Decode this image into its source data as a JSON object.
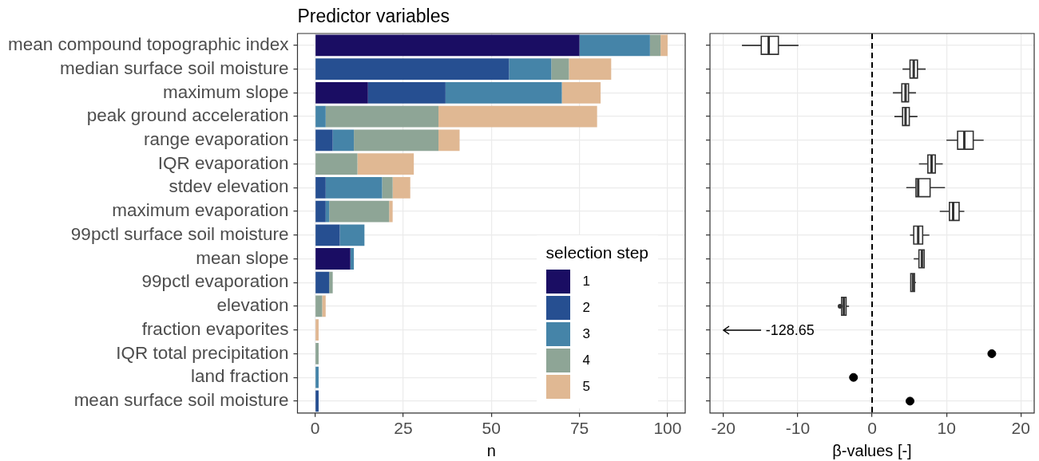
{
  "chart_data": [
    {
      "type": "bar",
      "orientation": "horizontal",
      "stacked": true,
      "title": "Predictor variables",
      "xlabel": "n",
      "legend_title": "selection step",
      "legend": "bottom right",
      "grid": true,
      "categories": [
        "mean compound topographic index",
        "median surface soil moisture",
        "maximum slope",
        "peak ground acceleration",
        "range evaporation",
        "IQR evaporation",
        "stdev elevation",
        "maximum evaporation",
        "99pctl surface soil moisture",
        "mean slope",
        "99pctl evaporation",
        "elevation",
        "fraction evaporites",
        "IQR total precipitation",
        "land fraction",
        "mean surface soil moisture"
      ],
      "xlim": [
        -5,
        105
      ],
      "xticks": [
        0,
        25,
        50,
        75,
        100
      ],
      "series": [
        {
          "name": "1",
          "color": "#1a0d63",
          "values": [
            75,
            0,
            15,
            0,
            0,
            0,
            0,
            0,
            0,
            10,
            0,
            0,
            0,
            0,
            0,
            0
          ]
        },
        {
          "name": "2",
          "color": "#264f91",
          "values": [
            0,
            55,
            22,
            0,
            5,
            0,
            3,
            3,
            7,
            0,
            4,
            0,
            0,
            0,
            0,
            1
          ]
        },
        {
          "name": "3",
          "color": "#4584a8",
          "values": [
            20,
            12,
            33,
            3,
            6,
            0,
            16,
            1,
            7,
            1,
            0,
            0,
            0,
            0,
            1,
            0
          ]
        },
        {
          "name": "4",
          "color": "#8ea596",
          "values": [
            3,
            5,
            0,
            32,
            24,
            12,
            3,
            17,
            0,
            0,
            1,
            2,
            0,
            1,
            0,
            0
          ]
        },
        {
          "name": "5",
          "color": "#e0b893",
          "values": [
            2,
            12,
            11,
            45,
            6,
            16,
            5,
            1,
            0,
            0,
            0,
            1,
            1,
            0,
            0,
            0
          ]
        }
      ]
    },
    {
      "type": "box",
      "orientation": "horizontal",
      "xlabel": "β-values [-]",
      "grid": true,
      "tick_labels": "x",
      "categories": [
        "mean compound topographic index",
        "median surface soil moisture",
        "maximum slope",
        "peak ground acceleration",
        "range evaporation",
        "IQR evaporation",
        "stdev elevation",
        "maximum evaporation",
        "99pctl surface soil moisture",
        "mean slope",
        "99pctl evaporation",
        "elevation",
        "fraction evaporites",
        "IQR total precipitation",
        "land fraction",
        "mean surface soil moisture"
      ],
      "xlim": [
        -21.8,
        21.8
      ],
      "xticks": [
        -20,
        -10,
        0,
        10,
        20
      ],
      "ref_lines": [
        {
          "axis": "x",
          "value": 0,
          "line_style": "dashed",
          "color": "#000000"
        }
      ],
      "annotations": [
        "-128.65"
      ],
      "boxes": [
        {
          "low": -17.5,
          "q1": -14.9,
          "median": -13.9,
          "q3": -12.6,
          "high": -9.9
        },
        {
          "low": 4.1,
          "q1": 5.1,
          "median": 5.6,
          "q3": 6.1,
          "high": 7.2
        },
        {
          "low": 2.8,
          "q1": 4.0,
          "median": 4.5,
          "q3": 4.9,
          "high": 5.9
        },
        {
          "low": 3.0,
          "q1": 4.1,
          "median": 4.5,
          "q3": 5.0,
          "high": 6.1
        },
        {
          "low": 10.0,
          "q1": 11.5,
          "median": 12.4,
          "q3": 13.6,
          "high": 15.0
        },
        {
          "low": 6.3,
          "q1": 7.5,
          "median": 8.0,
          "q3": 8.5,
          "high": 9.5
        },
        {
          "low": 4.6,
          "q1": 5.9,
          "median": 6.2,
          "q3": 7.8,
          "high": 9.8
        },
        {
          "low": 9.1,
          "q1": 10.4,
          "median": 10.9,
          "q3": 11.7,
          "high": 12.4
        },
        {
          "low": 5.1,
          "q1": 5.6,
          "median": 6.2,
          "q3": 6.8,
          "high": 7.7
        },
        {
          "low": 5.6,
          "q1": 6.3,
          "median": 6.7,
          "q3": 7.0,
          "high": 7.0
        },
        {
          "low": 5.2,
          "q1": 5.2,
          "median": 5.5,
          "q3": 5.7,
          "high": 5.9
        },
        {
          "low": -4.1,
          "q1": -4.1,
          "median": -3.8,
          "q3": -3.5,
          "high": -3.1,
          "outliers": [
            -4.3
          ]
        },
        null,
        null,
        null,
        null
      ],
      "series": [
        {
          "type": "scatter",
          "color": "#000000",
          "x": [
            "IQR total precipitation",
            "land fraction",
            "mean surface soil moisture"
          ],
          "values": [
            16.1,
            -2.5,
            5.1
          ]
        }
      ]
    }
  ]
}
